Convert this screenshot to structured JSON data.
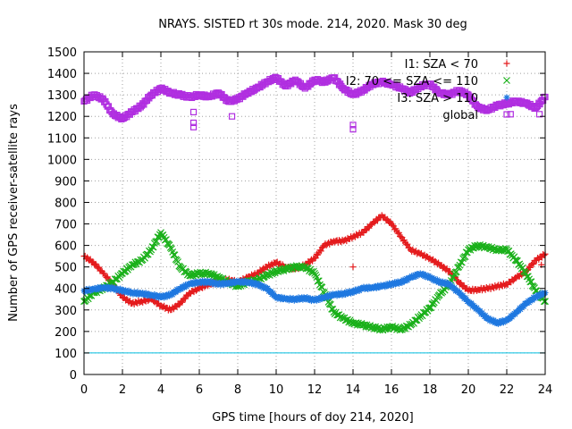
{
  "chart_data": {
    "type": "scatter",
    "title": "NRAYS. SISTED rt 30s mode. 214, 2020. Mask 30 deg",
    "xlabel": "GPS time [hours of doy 214, 2020]",
    "ylabel": "Number of GPS receiver-satellite rays",
    "xlim": [
      0,
      24
    ],
    "ylim": [
      0,
      1500
    ],
    "x_ticks": [
      "0",
      "2",
      "4",
      "6",
      "8",
      "10",
      "12",
      "14",
      "16",
      "18",
      "20",
      "22",
      "24"
    ],
    "y_ticks": [
      "0",
      "100",
      "200",
      "300",
      "400",
      "500",
      "600",
      "700",
      "800",
      "900",
      "1000",
      "1100",
      "1200",
      "1300",
      "1400",
      "1500"
    ],
    "grid": true,
    "legend_position": "top-right",
    "reference_line": {
      "y": 100,
      "color": "#00bfe0"
    },
    "series": [
      {
        "name": "I1: SZA < 70",
        "symbol": "+",
        "color": "#e41a1c",
        "x": [
          0,
          0.5,
          1,
          1.5,
          2,
          2.5,
          3,
          3.5,
          4,
          4.5,
          5,
          5.5,
          6,
          6.5,
          7,
          7.5,
          8,
          8.5,
          9,
          9.5,
          10,
          10.5,
          11,
          11.5,
          12,
          12.5,
          13,
          13.5,
          14,
          14.5,
          15,
          15.5,
          16,
          16.5,
          17,
          17.5,
          18,
          18.5,
          19,
          19.5,
          20,
          20.5,
          21,
          21.5,
          22,
          22.5,
          23,
          23.5,
          24
        ],
        "y": [
          550,
          520,
          470,
          420,
          360,
          330,
          340,
          350,
          320,
          300,
          330,
          380,
          400,
          420,
          430,
          440,
          430,
          450,
          470,
          500,
          520,
          500,
          490,
          510,
          540,
          600,
          620,
          620,
          640,
          660,
          700,
          740,
          700,
          640,
          580,
          560,
          540,
          510,
          480,
          430,
          390,
          395,
          400,
          410,
          420,
          450,
          480,
          530,
          560
        ],
        "outliers": [
          {
            "x": 14,
            "y": 500
          },
          {
            "x": 23.8,
            "y": 510
          }
        ]
      },
      {
        "name": "I2: 70 <= SZA <= 110",
        "symbol": "x",
        "color": "#1ab01a",
        "x": [
          0,
          0.5,
          1,
          1.5,
          2,
          2.5,
          3,
          3.5,
          4,
          4.5,
          5,
          5.5,
          6,
          6.5,
          7,
          7.5,
          8,
          8.5,
          9,
          9.5,
          10,
          10.5,
          11,
          11.5,
          12,
          12.5,
          13,
          13.5,
          14,
          14.5,
          15,
          15.5,
          16,
          16.5,
          17,
          17.5,
          18,
          18.5,
          19,
          19.5,
          20,
          20.5,
          21,
          21.5,
          22,
          22.5,
          23,
          23.5,
          24
        ],
        "y": [
          340,
          380,
          400,
          430,
          470,
          510,
          530,
          580,
          660,
          590,
          500,
          460,
          470,
          470,
          450,
          430,
          410,
          430,
          440,
          460,
          480,
          490,
          500,
          500,
          470,
          380,
          290,
          260,
          240,
          230,
          220,
          210,
          220,
          210,
          230,
          270,
          310,
          370,
          420,
          500,
          580,
          600,
          590,
          580,
          580,
          530,
          470,
          390,
          340
        ]
      },
      {
        "name": "I3: SZA > 110",
        "symbol": "*",
        "color": "#1f78e0",
        "x": [
          0,
          0.5,
          1,
          1.5,
          2,
          2.5,
          3,
          3.5,
          4,
          4.5,
          5,
          5.5,
          6,
          6.5,
          7,
          7.5,
          8,
          8.5,
          9,
          9.5,
          10,
          10.5,
          11,
          11.5,
          12,
          12.5,
          13,
          13.5,
          14,
          14.5,
          15,
          15.5,
          16,
          16.5,
          17,
          17.5,
          18,
          18.5,
          19,
          19.5,
          20,
          20.5,
          21,
          21.5,
          22,
          22.5,
          23,
          23.5,
          24
        ],
        "y": [
          390,
          395,
          405,
          400,
          390,
          380,
          375,
          370,
          360,
          370,
          400,
          420,
          430,
          430,
          420,
          425,
          430,
          430,
          420,
          400,
          360,
          350,
          350,
          355,
          345,
          360,
          370,
          375,
          385,
          400,
          405,
          410,
          420,
          430,
          450,
          470,
          450,
          430,
          420,
          380,
          340,
          300,
          260,
          240,
          250,
          290,
          330,
          360,
          380
        ]
      },
      {
        "name": "global",
        "symbol": "square",
        "color": "#b02ee0",
        "x": [
          0,
          0.5,
          1,
          1.5,
          2,
          2.5,
          3,
          3.5,
          4,
          4.5,
          5,
          5.5,
          6,
          6.5,
          7,
          7.5,
          8,
          8.5,
          9,
          9.5,
          10,
          10.5,
          11,
          11.5,
          12,
          12.5,
          13,
          13.5,
          14,
          14.5,
          15,
          15.5,
          16,
          16.5,
          17,
          17.5,
          18,
          18.5,
          19,
          19.5,
          20,
          20.5,
          21,
          21.5,
          22,
          22.5,
          23,
          23.5,
          24
        ],
        "y": [
          1270,
          1300,
          1280,
          1210,
          1190,
          1220,
          1250,
          1300,
          1330,
          1310,
          1300,
          1290,
          1300,
          1290,
          1310,
          1270,
          1280,
          1310,
          1330,
          1360,
          1380,
          1340,
          1370,
          1330,
          1370,
          1360,
          1380,
          1330,
          1300,
          1320,
          1350,
          1360,
          1350,
          1330,
          1310,
          1340,
          1350,
          1310,
          1300,
          1320,
          1300,
          1240,
          1230,
          1250,
          1260,
          1270,
          1260,
          1240,
          1290
        ],
        "outliers": [
          {
            "x": 5.7,
            "y": 1220
          },
          {
            "x": 5.7,
            "y": 1170
          },
          {
            "x": 5.7,
            "y": 1150
          },
          {
            "x": 7.7,
            "y": 1200
          },
          {
            "x": 14,
            "y": 1160
          },
          {
            "x": 14,
            "y": 1140
          },
          {
            "x": 22.2,
            "y": 1210
          },
          {
            "x": 23.7,
            "y": 1210
          }
        ]
      }
    ]
  }
}
